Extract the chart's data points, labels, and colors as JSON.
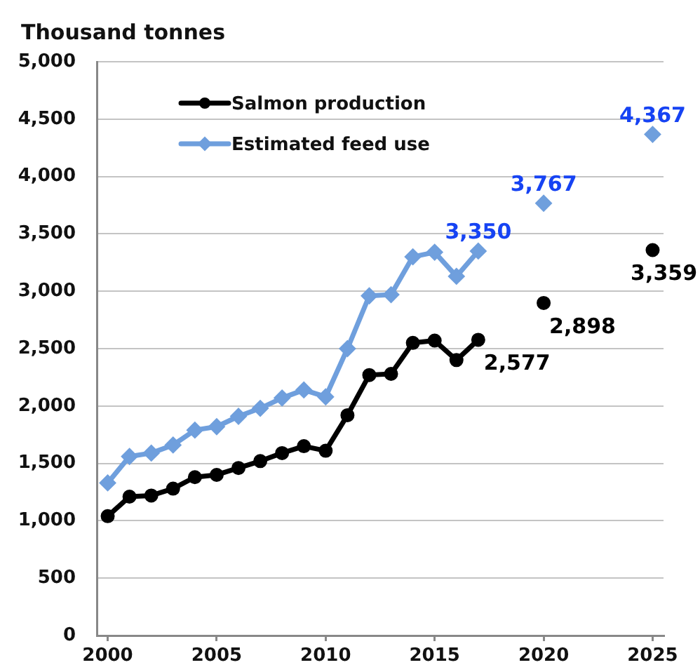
{
  "chart_data": {
    "type": "line",
    "ylabel": "Thousand tonnes",
    "x": [
      2000,
      2001,
      2002,
      2003,
      2004,
      2005,
      2006,
      2007,
      2008,
      2009,
      2010,
      2011,
      2012,
      2013,
      2014,
      2015,
      2016,
      2017,
      2018,
      2019,
      2020,
      2021,
      2022,
      2023,
      2024,
      2025
    ],
    "series": [
      {
        "name": "Salmon production",
        "color": "#000000",
        "marker": "circle",
        "values": [
          1040,
          1210,
          1220,
          1280,
          1380,
          1400,
          1460,
          1520,
          1590,
          1650,
          1610,
          1920,
          2270,
          2280,
          2550,
          2570,
          2400,
          2577,
          null,
          null,
          2898,
          null,
          null,
          null,
          null,
          3359
        ],
        "value_labels": [
          null,
          null,
          null,
          null,
          null,
          null,
          null,
          null,
          null,
          null,
          null,
          null,
          null,
          null,
          null,
          null,
          null,
          "2,577",
          null,
          null,
          "2,898",
          null,
          null,
          null,
          null,
          "3,359"
        ]
      },
      {
        "name": "Estimated feed use",
        "color": "#6f9fdd",
        "marker": "diamond",
        "values": [
          1330,
          1560,
          1590,
          1660,
          1790,
          1820,
          1910,
          1980,
          2070,
          2140,
          2080,
          2500,
          2960,
          2970,
          3300,
          3340,
          3130,
          3350,
          null,
          null,
          3767,
          null,
          null,
          null,
          null,
          4367
        ],
        "value_labels": [
          null,
          null,
          null,
          null,
          null,
          null,
          null,
          null,
          null,
          null,
          null,
          null,
          null,
          null,
          null,
          null,
          null,
          "3,350",
          null,
          null,
          "3,767",
          null,
          null,
          null,
          null,
          "4,367"
        ]
      }
    ],
    "xlim": [
      1999.5,
      2025.5
    ],
    "xticks": [
      2000,
      2005,
      2010,
      2015,
      2020,
      2025
    ],
    "ylim": [
      0,
      5000
    ],
    "yticks": [
      0,
      500,
      {
        "value": 1000,
        "label": "1,000"
      },
      {
        "value": 1500,
        "label": "1,500"
      },
      {
        "value": 2000,
        "label": "2,000"
      },
      {
        "value": 2500,
        "label": "2,500"
      },
      {
        "value": 3000,
        "label": "3,000"
      },
      {
        "value": 3500,
        "label": "3,500"
      },
      {
        "value": 4000,
        "label": "4,000"
      },
      {
        "value": 4500,
        "label": "4,500"
      },
      {
        "value": 5000,
        "label": "5,000"
      }
    ],
    "grid": "y",
    "legend": "top left"
  }
}
